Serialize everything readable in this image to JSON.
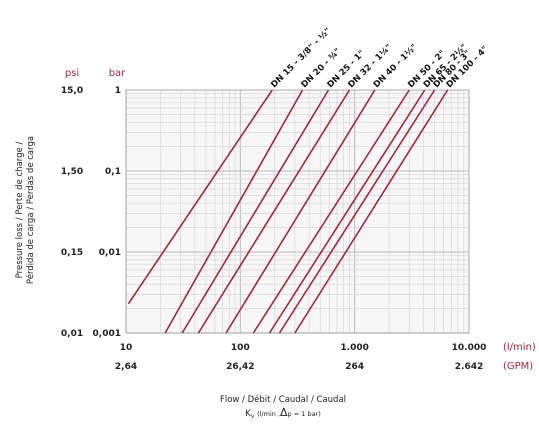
{
  "chart_data": {
    "type": "line",
    "x_scale": "log",
    "y_scale": "log",
    "xlim": [
      10,
      10000
    ],
    "ylim": [
      0.001,
      1
    ],
    "grid": true,
    "x_ticks": [
      {
        "value": 10,
        "label": "10",
        "gpm_label": "2,64"
      },
      {
        "value": 100,
        "label": "100",
        "gpm_label": "26,42"
      },
      {
        "value": 1000,
        "label": "1.000",
        "gpm_label": "264"
      },
      {
        "value": 10000,
        "label": "10.000",
        "gpm_label": "2.642"
      }
    ],
    "y_ticks": [
      {
        "value": 1,
        "bar_label": "1",
        "psi_label": "15,0"
      },
      {
        "value": 0.1,
        "bar_label": "0,1",
        "psi_label": "1,50"
      },
      {
        "value": 0.01,
        "bar_label": "0,01",
        "psi_label": "0,15"
      },
      {
        "value": 0.001,
        "bar_label": "0,001",
        "psi_label": "0,01"
      }
    ],
    "y_units": {
      "psi": "psi",
      "bar": "bar"
    },
    "x_units": {
      "primary": "(l/min)",
      "secondary": "(GPM)"
    },
    "ylabel_line1": "Pressure loss / Perte de charge /",
    "ylabel_line2": "Pérdida de carga / Perdas de carga",
    "xlabel_line1": "Flow / Débit / Caudal / Caudal",
    "xlabel_kv": "K",
    "xlabel_kv_sub": "v",
    "xlabel_kv_paren": "(l/min ,",
    "xlabel_delta": "Δ",
    "xlabel_kv_rest": "p = 1 bar)",
    "line_color": "#a0283c",
    "series": [
      {
        "name": "DN 15 - 3/8\" - ½\"",
        "x": [
          10.5,
          190
        ],
        "y": [
          0.0023,
          1
        ]
      },
      {
        "name": "DN 20 - ¾\"",
        "x": [
          22,
          350
        ],
        "y": [
          0.001,
          1
        ]
      },
      {
        "name": "DN 25 - 1\"",
        "x": [
          31,
          590
        ],
        "y": [
          0.001,
          1
        ]
      },
      {
        "name": "DN 32 - 1¼\"",
        "x": [
          43,
          900
        ],
        "y": [
          0.001,
          1
        ]
      },
      {
        "name": "DN 40 - 1½\"",
        "x": [
          75,
          1500
        ],
        "y": [
          0.001,
          1
        ]
      },
      {
        "name": "DN 50 - 2\"",
        "x": [
          130,
          3000
        ],
        "y": [
          0.001,
          1
        ]
      },
      {
        "name": "DN 65 - 2½\"",
        "x": [
          180,
          4100
        ],
        "y": [
          0.001,
          1
        ]
      },
      {
        "name": "DN 80 - 3\"",
        "x": [
          220,
          5000
        ],
        "y": [
          0.001,
          1
        ]
      },
      {
        "name": "DN 100 - 4\"",
        "x": [
          300,
          6500
        ],
        "y": [
          0.001,
          1
        ]
      }
    ]
  }
}
